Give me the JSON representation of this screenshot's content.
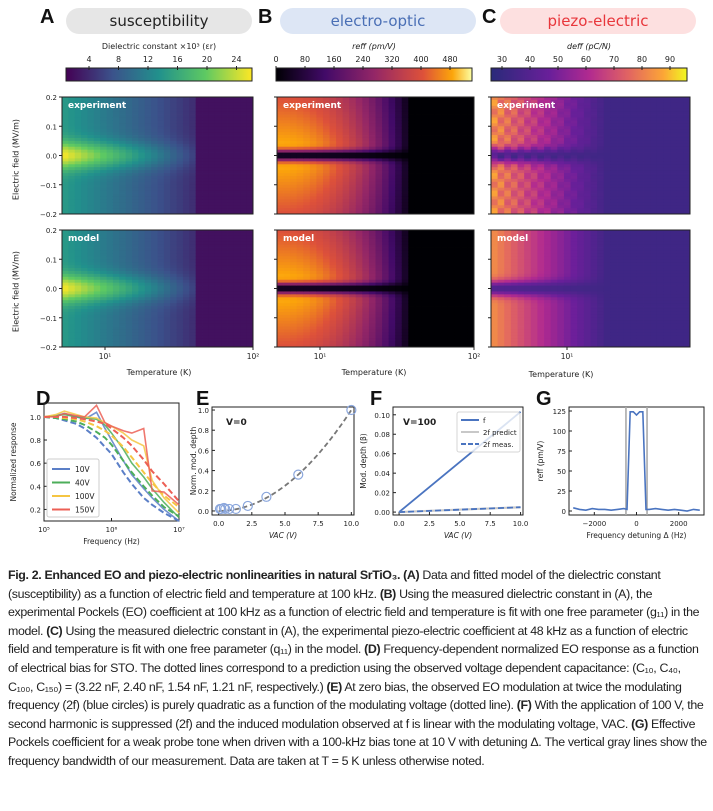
{
  "panels": {
    "A": {
      "letter": "A",
      "title": "susceptibility",
      "title_color": "#222222",
      "pill_color": "#e6e6e6",
      "colorbar_label": "Dielectric constant ×10³ (εr)",
      "colorbar_ticks": [
        "4",
        "8",
        "12",
        "16",
        "20",
        "24"
      ],
      "colormap": "viridis"
    },
    "B": {
      "letter": "B",
      "title": "electro-optic",
      "title_color": "#4a6fb5",
      "pill_color": "#dde6f5",
      "colorbar_label": "reff (pm/V)",
      "colorbar_ticks": [
        "0",
        "80",
        "160",
        "240",
        "320",
        "400",
        "480"
      ],
      "colormap": "inferno"
    },
    "C": {
      "letter": "C",
      "title": "piezo-electric",
      "title_color": "#e8363b",
      "pill_color": "#fde0e0",
      "colorbar_label": "deff (pC/N)",
      "colorbar_ticks": [
        "30",
        "40",
        "50",
        "60",
        "70",
        "80",
        "90"
      ],
      "colormap": "plasma"
    }
  },
  "heatmaps": {
    "row_labels": [
      "experiment",
      "model"
    ],
    "ylabel": "Electric field (MV/m)",
    "yticks": [
      "0.2",
      "0.1",
      "0.0",
      "−0.1",
      "−0.2"
    ],
    "xlabel": "Temperature (K)",
    "xticks_AB": [
      "10¹",
      "10²"
    ],
    "xticks_C": [
      "10¹"
    ]
  },
  "chart_data": [
    {
      "panel": "D",
      "type": "line",
      "xlabel": "Frequency (Hz)",
      "ylabel": "Normalized response",
      "xscale": "log",
      "xlim": [
        100000,
        10000000
      ],
      "ylim": [
        0.1,
        1.12
      ],
      "xticks": [
        "10⁵",
        "10⁶",
        "10⁷"
      ],
      "yticks": [
        "1.0",
        "0.8",
        "0.6",
        "0.4",
        "0.2"
      ],
      "legend": "lower-left",
      "x": [
        100000,
        150000,
        200000,
        300000,
        400000,
        600000,
        800000,
        1000000,
        1500000,
        2000000,
        3000000,
        4000000,
        6000000,
        10000000
      ],
      "series": [
        {
          "name": "10V",
          "color": "#5b7fc7",
          "measured": [
            1.0,
            1.01,
            1.03,
            1.0,
            0.98,
            1.04,
            0.9,
            0.8,
            0.62,
            0.5,
            0.38,
            0.3,
            0.2,
            0.1
          ],
          "predicted": [
            1.0,
            0.99,
            0.97,
            0.94,
            0.9,
            0.82,
            0.74,
            0.68,
            0.52,
            0.42,
            0.3,
            0.24,
            0.17,
            0.1
          ]
        },
        {
          "name": "40V",
          "color": "#4cae5a",
          "measured": [
            1.0,
            1.01,
            1.02,
            1.0,
            0.99,
            0.98,
            0.93,
            0.86,
            0.72,
            0.6,
            0.48,
            0.38,
            0.26,
            0.13
          ],
          "predicted": [
            1.0,
            0.99,
            0.98,
            0.96,
            0.93,
            0.87,
            0.82,
            0.76,
            0.62,
            0.52,
            0.4,
            0.32,
            0.22,
            0.14
          ]
        },
        {
          "name": "100V",
          "color": "#f5c542",
          "measured": [
            1.0,
            1.02,
            1.05,
            1.02,
            1.0,
            0.99,
            0.95,
            0.92,
            0.86,
            0.8,
            0.75,
            0.45,
            0.3,
            0.17
          ],
          "predicted": [
            1.0,
            1.0,
            0.99,
            0.98,
            0.96,
            0.92,
            0.88,
            0.84,
            0.74,
            0.65,
            0.52,
            0.43,
            0.32,
            0.22
          ]
        },
        {
          "name": "150V",
          "color": "#ec5f55",
          "measured": [
            1.0,
            1.0,
            1.03,
            1.01,
            1.0,
            1.1,
            0.95,
            0.92,
            0.88,
            0.86,
            0.9,
            0.36,
            0.35,
            0.24
          ],
          "predicted": [
            1.0,
            1.0,
            1.0,
            0.99,
            0.98,
            0.96,
            0.94,
            0.9,
            0.82,
            0.75,
            0.63,
            0.53,
            0.42,
            0.27
          ]
        }
      ]
    },
    {
      "panel": "E",
      "type": "scatter",
      "xlabel": "VAC (V)",
      "ylabel": "Norm. mod. depth",
      "xlim": [
        -0.5,
        10.2
      ],
      "ylim": [
        -0.04,
        1.03
      ],
      "xticks": [
        "0.0",
        "2.5",
        "5.0",
        "7.5",
        "10.0"
      ],
      "yticks": [
        "0.0",
        "0.2",
        "0.4",
        "0.6",
        "0.8",
        "1.0"
      ],
      "annotation": "V=0",
      "points_x": [
        0.1,
        0.2,
        0.4,
        0.5,
        0.8,
        1.3,
        2.2,
        3.6,
        6.0,
        10.0
      ],
      "points_y": [
        0.02,
        0.02,
        0.03,
        0.02,
        0.02,
        0.02,
        0.05,
        0.14,
        0.36,
        1.0
      ],
      "fit": "quadratic"
    },
    {
      "panel": "F",
      "type": "line",
      "xlabel": "VAC (V)",
      "ylabel": "Mod. depth (β)",
      "xlim": [
        -0.5,
        10.2
      ],
      "ylim": [
        -0.003,
        0.108
      ],
      "xticks": [
        "0.0",
        "2.5",
        "5.0",
        "7.5",
        "10.0"
      ],
      "yticks": [
        "0.00",
        "0.02",
        "0.04",
        "0.06",
        "0.08",
        "0.10"
      ],
      "annotation": "V=100",
      "legend": "top-right",
      "x": [
        0,
        10
      ],
      "series": [
        {
          "name": "f",
          "style": "solid",
          "color": "#4a74c0",
          "values": [
            0,
            0.103
          ]
        },
        {
          "name": "2f predict",
          "style": "solid",
          "color": "#c8c8c8",
          "values": [
            0,
            0.005
          ]
        },
        {
          "name": "2f meas.",
          "style": "dashed",
          "color": "#4a74c0",
          "values": [
            0,
            0.005
          ]
        }
      ]
    },
    {
      "panel": "G",
      "type": "line",
      "xlabel": "Frequency detuning Δ (Hz)",
      "ylabel": "reff (pm/V)",
      "xlim": [
        -3200,
        3200
      ],
      "ylim": [
        -5,
        130
      ],
      "xticks": [
        "−2000",
        "0",
        "2000"
      ],
      "yticks": [
        "0",
        "25",
        "50",
        "75",
        "100",
        "125"
      ],
      "bandwidth_lines": [
        -500,
        500
      ],
      "x": [
        -3000,
        -2700,
        -2400,
        -2100,
        -1800,
        -1500,
        -1200,
        -900,
        -600,
        -450,
        -300,
        -150,
        0,
        150,
        300,
        450,
        600,
        900,
        1200,
        1500,
        1800,
        2100,
        2400,
        2700,
        3000
      ],
      "values": [
        4,
        2,
        1,
        3,
        2,
        2,
        1,
        2,
        3,
        2,
        124,
        124,
        120,
        124,
        124,
        2,
        2,
        3,
        2,
        1,
        2,
        1,
        0,
        2,
        1
      ]
    }
  ],
  "caption": {
    "fig_label": "Fig. 2.",
    "fig_title": "Enhanced EO and piezo-electric nonlinearities in natural SrTiO₃.",
    "A": "Data and fitted model of the dielectric constant (susceptibility) as a function of electric field and temperature at 100 kHz.",
    "B": "Using the measured dielectric constant in (A), the experimental Pockels (EO) coefficient at 100 kHz as a function of electric field and temperature is fit with one free parameter (g₁₁) in the model.",
    "C": "Using the measured dielectric constant in (A), the experimental piezo-electric coefficient at 48 kHz as a function of electric field and temperature is fit with one free parameter (q₁₁) in the model.",
    "D": "Frequency-dependent normalized EO response as a function of electrical bias for STO. The dotted lines correspond to a prediction using the observed voltage dependent capacitance: (C₁₀, C₄₀, C₁₀₀, C₁₅₀) = (3.22 nF, 2.40 nF, 1.54 nF, 1.21 nF, respectively.)",
    "E": "At zero bias, the observed EO modulation at twice the modulating frequency (2f) (blue circles) is purely quadratic as a function of the modulating voltage (dotted line).",
    "F": "With the application of 100 V, the second harmonic is suppressed (2f) and the induced modulation observed at f is linear with the modulating voltage, VAC.",
    "G": "Effective Pockels coefficient for a weak probe tone when driven with a 100-kHz bias tone at 10 V with detuning Δ. The vertical gray lines show the frequency bandwidth of our measurement. Data are taken at T = 5 K unless otherwise noted."
  }
}
